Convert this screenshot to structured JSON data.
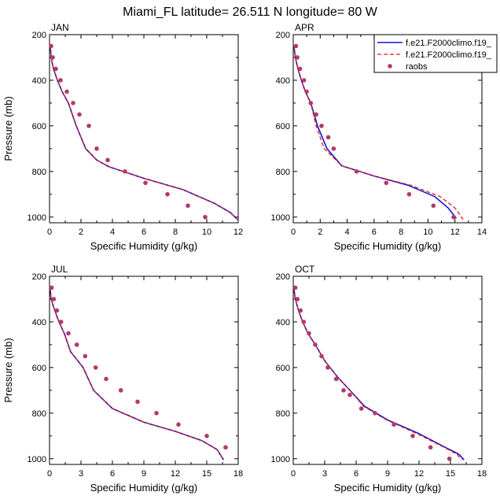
{
  "figure": {
    "title": "Miami_FL  latitude= 26.511 N longitude= 80 W"
  },
  "legend": {
    "placement": "top-right of APR panel",
    "entries": [
      {
        "label": "f.e21.F2000climo.f19_",
        "style": "solid",
        "color": "#1414d2"
      },
      {
        "label": "f.e21.F2000climo.f19_",
        "style": "dashed",
        "color": "#e01e1e"
      },
      {
        "label": "raobs",
        "style": "marker",
        "color": "#b23a6a"
      }
    ]
  },
  "colors": {
    "model_solid": "#1414d2",
    "model_dashed": "#e01e1e",
    "raobs": "#b23a6a"
  },
  "chart_data": [
    {
      "type": "line",
      "panel": "JAN",
      "label": "JAN",
      "xlabel": "Specific Humidity (g/kg)",
      "ylabel": "Pressure (mb)",
      "xlim": [
        0,
        12
      ],
      "xticks": [
        0,
        2,
        4,
        6,
        8,
        10,
        12
      ],
      "ylim": [
        1025,
        200
      ],
      "yticks": [
        200,
        400,
        600,
        800,
        1000
      ],
      "series": [
        {
          "name": "f.e21.F2000climo.f19_",
          "style": "solid",
          "x": [
            0.05,
            0.1,
            0.25,
            0.5,
            0.8,
            1.2,
            1.7,
            2.3,
            3.0,
            3.8,
            6.0,
            8.5,
            10.5,
            11.5,
            11.95
          ],
          "y": [
            250,
            300,
            350,
            400,
            450,
            500,
            600,
            700,
            750,
            780,
            830,
            880,
            940,
            980,
            1010
          ]
        },
        {
          "name": "f.e21.F2000climo.f19_",
          "style": "dashed",
          "x": [
            0.05,
            0.1,
            0.25,
            0.5,
            0.8,
            1.2,
            1.7,
            2.3,
            3.0,
            3.8,
            6.0,
            8.5,
            10.5,
            11.5,
            11.95
          ],
          "y": [
            250,
            300,
            350,
            400,
            450,
            500,
            600,
            700,
            750,
            780,
            830,
            880,
            940,
            980,
            1010
          ]
        },
        {
          "name": "raobs",
          "style": "marker",
          "x": [
            0.1,
            0.2,
            0.4,
            0.7,
            1.1,
            1.5,
            1.9,
            2.5,
            3.0,
            3.7,
            4.8,
            6.1,
            7.5,
            8.8,
            9.9
          ],
          "y": [
            250,
            300,
            350,
            400,
            450,
            500,
            550,
            600,
            700,
            750,
            800,
            850,
            900,
            950,
            1000
          ]
        }
      ]
    },
    {
      "type": "line",
      "panel": "APR",
      "label": "APR",
      "xlabel": "Specific Humidity (g/kg)",
      "ylabel": "",
      "xlim": [
        0,
        14
      ],
      "xticks": [
        0,
        2,
        4,
        6,
        8,
        10,
        12,
        14
      ],
      "ylim": [
        1025,
        200
      ],
      "yticks": [
        200,
        400,
        600,
        800,
        1000
      ],
      "series": [
        {
          "name": "f.e21.F2000climo.f19_",
          "style": "solid",
          "x": [
            0.05,
            0.15,
            0.35,
            0.6,
            0.9,
            1.3,
            1.8,
            2.5,
            3.6,
            6.0,
            8.5,
            10.5,
            11.5,
            12.1
          ],
          "y": [
            250,
            300,
            350,
            400,
            450,
            500,
            600,
            700,
            775,
            820,
            860,
            910,
            960,
            1005
          ]
        },
        {
          "name": "f.e21.F2000climo.f19_",
          "style": "dashed",
          "x": [
            0.05,
            0.15,
            0.35,
            0.6,
            0.9,
            1.3,
            1.7,
            2.3,
            3.6,
            6.0,
            8.7,
            10.9,
            12.0,
            12.6
          ],
          "y": [
            250,
            300,
            350,
            400,
            450,
            500,
            600,
            700,
            775,
            820,
            860,
            910,
            960,
            1010
          ]
        },
        {
          "name": "raobs",
          "style": "marker",
          "x": [
            0.2,
            0.3,
            0.5,
            0.8,
            1.0,
            1.3,
            1.7,
            2.1,
            2.6,
            3.0,
            4.7,
            6.9,
            8.6,
            10.4,
            11.9
          ],
          "y": [
            250,
            300,
            350,
            400,
            450,
            500,
            550,
            600,
            650,
            700,
            800,
            850,
            900,
            950,
            1000
          ]
        }
      ]
    },
    {
      "type": "line",
      "panel": "JUL",
      "label": "JUL",
      "xlabel": "Specific Humidity (g/kg)",
      "ylabel": "Pressure (mb)",
      "xlim": [
        0,
        18
      ],
      "xticks": [
        0,
        3,
        6,
        9,
        12,
        15,
        18
      ],
      "ylim": [
        1025,
        200
      ],
      "yticks": [
        200,
        400,
        600,
        800,
        1000
      ],
      "series": [
        {
          "name": "f.e21.F2000climo.f19_",
          "style": "solid",
          "x": [
            0.05,
            0.15,
            0.5,
            0.9,
            1.4,
            2.0,
            3.2,
            4.2,
            6.0,
            9.0,
            12.0,
            14.5,
            16.0,
            16.6
          ],
          "y": [
            250,
            300,
            350,
            400,
            450,
            530,
            600,
            700,
            780,
            840,
            880,
            920,
            960,
            1005
          ]
        },
        {
          "name": "f.e21.F2000climo.f19_",
          "style": "dashed",
          "x": [
            0.05,
            0.15,
            0.5,
            0.9,
            1.4,
            2.0,
            3.2,
            4.2,
            6.0,
            9.0,
            12.0,
            14.5,
            16.0,
            16.6
          ],
          "y": [
            250,
            300,
            350,
            400,
            450,
            530,
            600,
            700,
            780,
            840,
            880,
            920,
            960,
            1005
          ]
        },
        {
          "name": "raobs",
          "style": "marker",
          "x": [
            0.2,
            0.4,
            0.7,
            1.1,
            1.8,
            2.6,
            3.4,
            4.4,
            5.4,
            6.8,
            8.4,
            10.2,
            12.3,
            15.0,
            16.8
          ],
          "y": [
            250,
            300,
            350,
            400,
            450,
            500,
            550,
            600,
            650,
            700,
            750,
            800,
            850,
            900,
            950
          ]
        }
      ]
    },
    {
      "type": "line",
      "panel": "OCT",
      "label": "OCT",
      "xlabel": "Specific Humidity (g/kg)",
      "ylabel": "",
      "xlim": [
        0,
        18
      ],
      "xticks": [
        0,
        3,
        6,
        9,
        12,
        15,
        18
      ],
      "ylim": [
        1025,
        200
      ],
      "yticks": [
        200,
        400,
        600,
        800,
        1000
      ],
      "series": [
        {
          "name": "f.e21.F2000climo.f19_",
          "style": "solid",
          "x": [
            0.05,
            0.2,
            0.5,
            0.9,
            1.4,
            2.1,
            3.0,
            4.2,
            5.6,
            6.8,
            9.0,
            12.0,
            14.5,
            15.8,
            16.3
          ],
          "y": [
            250,
            300,
            350,
            400,
            450,
            500,
            570,
            640,
            710,
            770,
            830,
            890,
            950,
            980,
            1005
          ]
        },
        {
          "name": "f.e21.F2000climo.f19_",
          "style": "dashed",
          "x": [
            0.05,
            0.2,
            0.5,
            0.9,
            1.4,
            2.1,
            3.0,
            4.2,
            5.6,
            6.7,
            8.9,
            11.8,
            14.4,
            15.6,
            16.1
          ],
          "y": [
            250,
            300,
            350,
            400,
            450,
            500,
            570,
            640,
            710,
            770,
            830,
            890,
            950,
            980,
            1005
          ]
        },
        {
          "name": "raobs",
          "style": "marker",
          "x": [
            0.2,
            0.4,
            0.7,
            1.0,
            1.5,
            2.1,
            2.7,
            3.3,
            4.1,
            4.8,
            5.4,
            6.5,
            7.8,
            9.6,
            11.4,
            13.1,
            14.9
          ],
          "y": [
            250,
            300,
            350,
            400,
            450,
            500,
            550,
            600,
            650,
            700,
            720,
            780,
            800,
            850,
            900,
            950,
            1000
          ]
        }
      ]
    }
  ]
}
